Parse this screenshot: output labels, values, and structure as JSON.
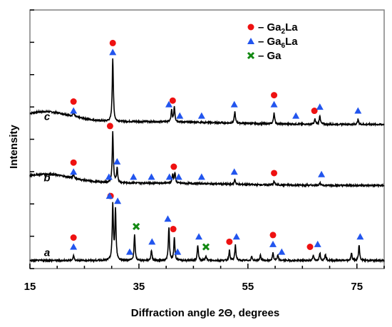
{
  "chart_data": {
    "type": "line",
    "title": "",
    "xlabel": "Diffraction angle 2Θ, degrees",
    "ylabel": "Intensity",
    "xlim": [
      15,
      80
    ],
    "xticks": [
      15,
      35,
      55,
      75
    ],
    "yticks_unlabeled": 8,
    "legend": {
      "placement": "top-right",
      "items": [
        {
          "symbol": "circle",
          "color": "#ee1111",
          "text_main": "– Ga",
          "sub1": "2",
          "text_mid": "La",
          "sub2": ""
        },
        {
          "symbol": "triangle",
          "color": "#2255ee",
          "text_main": "– Ga",
          "sub1": "6",
          "text_mid": "La",
          "sub2": ""
        },
        {
          "symbol": "cross",
          "color": "#118811",
          "text_main": "– Ga",
          "sub1": "",
          "text_mid": "",
          "sub2": ""
        }
      ]
    },
    "series": [
      {
        "name": "c",
        "baseline": 0.55,
        "bump": {
          "center": 17.5,
          "height": 0.045,
          "width": 7
        },
        "peaks": [
          [
            23,
            0.02
          ],
          [
            30.2,
            0.25
          ],
          [
            41.0,
            0.045
          ],
          [
            41.5,
            0.06
          ],
          [
            52.6,
            0.045
          ],
          [
            59.8,
            0.045
          ],
          [
            67.3,
            0.02
          ],
          [
            68.2,
            0.035
          ],
          [
            75.2,
            0.02
          ]
        ],
        "markers": [
          {
            "x": 23,
            "symbols": [
              "circle",
              "triangle"
            ]
          },
          {
            "x": 30.2,
            "symbols": [
              "circle",
              "triangle"
            ]
          },
          {
            "x": 40.5,
            "symbols": [
              "triangle"
            ]
          },
          {
            "x": 41.2,
            "symbols": [
              "circle"
            ]
          },
          {
            "x": 42.5,
            "symbols": [
              "triangle"
            ]
          },
          {
            "x": 46.5,
            "symbols": [
              "triangle"
            ]
          },
          {
            "x": 52.5,
            "symbols": [
              "triangle"
            ]
          },
          {
            "x": 59.8,
            "symbols": [
              "circle",
              "triangle"
            ]
          },
          {
            "x": 63.8,
            "symbols": [
              "triangle"
            ]
          },
          {
            "x": 67.2,
            "symbols": [
              "circle"
            ]
          },
          {
            "x": 68.2,
            "symbols": [
              "triangle"
            ]
          },
          {
            "x": 75.2,
            "symbols": [
              "triangle"
            ]
          }
        ]
      },
      {
        "name": "b",
        "baseline": 0.31,
        "bump": {
          "center": 17.5,
          "height": 0.04,
          "width": 7
        },
        "peaks": [
          [
            23,
            0.02
          ],
          [
            30.2,
            0.2
          ],
          [
            31.0,
            0.06
          ],
          [
            41.2,
            0.035
          ],
          [
            41.6,
            0.04
          ],
          [
            52.6,
            0.02
          ],
          [
            59.8,
            0.015
          ],
          [
            68.2,
            0.01
          ]
        ],
        "markers": [
          {
            "x": 23,
            "symbols": [
              "circle",
              "triangle"
            ]
          },
          {
            "x": 29.5,
            "symbols": [
              "triangle"
            ]
          },
          {
            "x": 29.7,
            "symbols": [
              "circle"
            ]
          },
          {
            "x": 31.0,
            "symbols": [
              "triangle"
            ]
          },
          {
            "x": 34.0,
            "symbols": [
              "triangle"
            ]
          },
          {
            "x": 37.3,
            "symbols": [
              "triangle"
            ]
          },
          {
            "x": 40.6,
            "symbols": [
              "triangle"
            ]
          },
          {
            "x": 41.4,
            "symbols": [
              "circle"
            ]
          },
          {
            "x": 42.3,
            "symbols": [
              "triangle"
            ]
          },
          {
            "x": 46.5,
            "symbols": [
              "triangle"
            ]
          },
          {
            "x": 52.5,
            "symbols": [
              "triangle"
            ]
          },
          {
            "x": 59.8,
            "symbols": [
              "circle"
            ]
          },
          {
            "x": 68.5,
            "symbols": [
              "triangle"
            ]
          }
        ]
      },
      {
        "name": "a",
        "baseline": 0.015,
        "bump": {
          "center": 17.5,
          "height": 0,
          "width": 7
        },
        "peaks": [
          [
            23,
            0.02
          ],
          [
            30.2,
            0.22
          ],
          [
            30.7,
            0.2
          ],
          [
            34.2,
            0.1
          ],
          [
            37.3,
            0.04
          ],
          [
            40.5,
            0.13
          ],
          [
            41.5,
            0.09
          ],
          [
            45.8,
            0.06
          ],
          [
            47.3,
            0.02
          ],
          [
            51.6,
            0.04
          ],
          [
            52.7,
            0.06
          ],
          [
            55.7,
            0.015
          ],
          [
            57.3,
            0.02
          ],
          [
            59.6,
            0.03
          ],
          [
            60.5,
            0.02
          ],
          [
            67.0,
            0.02
          ],
          [
            68.2,
            0.03
          ],
          [
            69.2,
            0.025
          ],
          [
            74.0,
            0.03
          ],
          [
            75.4,
            0.06
          ]
        ],
        "markers": [
          {
            "x": 23,
            "symbols": [
              "circle",
              "triangle"
            ]
          },
          {
            "x": 29.8,
            "symbols": [
              "circle"
            ]
          },
          {
            "x": 29.6,
            "symbols": [
              "triangle"
            ]
          },
          {
            "x": 31.1,
            "symbols": [
              "triangle"
            ]
          },
          {
            "x": 34.5,
            "symbols": [
              "cross"
            ]
          },
          {
            "x": 33.3,
            "symbols": [
              "triangle"
            ]
          },
          {
            "x": 37.4,
            "symbols": [
              "triangle"
            ]
          },
          {
            "x": 40.3,
            "symbols": [
              "triangle"
            ]
          },
          {
            "x": 41.3,
            "symbols": [
              "circle"
            ]
          },
          {
            "x": 42.1,
            "symbols": [
              "triangle"
            ]
          },
          {
            "x": 46.0,
            "symbols": [
              "triangle"
            ]
          },
          {
            "x": 47.3,
            "symbols": [
              "cross"
            ]
          },
          {
            "x": 51.6,
            "symbols": [
              "circle"
            ]
          },
          {
            "x": 52.9,
            "symbols": [
              "triangle"
            ]
          },
          {
            "x": 59.6,
            "symbols": [
              "circle",
              "triangle"
            ]
          },
          {
            "x": 61.2,
            "symbols": [
              "triangle"
            ]
          },
          {
            "x": 66.4,
            "symbols": [
              "circle"
            ]
          },
          {
            "x": 67.8,
            "symbols": [
              "triangle"
            ]
          },
          {
            "x": 75.6,
            "symbols": [
              "triangle"
            ]
          }
        ]
      }
    ]
  }
}
